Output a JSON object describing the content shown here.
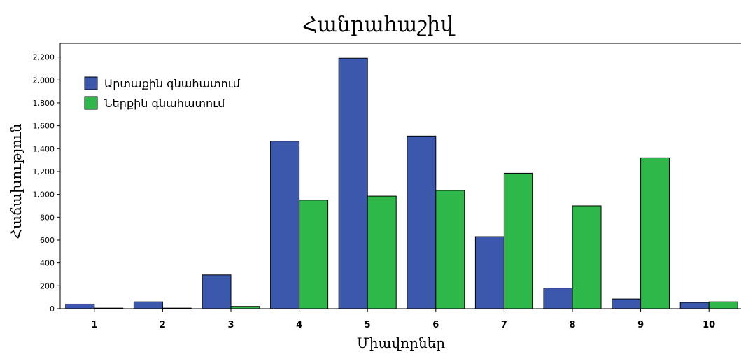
{
  "chart_data": {
    "type": "bar",
    "title": "Հանրահաշիվ",
    "xlabel": "Միավորներ",
    "ylabel": "Հաճախություն",
    "categories": [
      "1",
      "2",
      "3",
      "4",
      "5",
      "6",
      "7",
      "8",
      "9",
      "10"
    ],
    "series": [
      {
        "name": "Արտաքին գնահատում",
        "color": "#3c58ad",
        "values": [
          40,
          60,
          295,
          1465,
          2190,
          1510,
          630,
          180,
          85,
          55
        ]
      },
      {
        "name": "Ներքին գնահատում",
        "color": "#2fb84a",
        "values": [
          5,
          5,
          20,
          950,
          985,
          1035,
          1185,
          900,
          1320,
          60
        ]
      }
    ],
    "yticks": [
      "0",
      "200",
      "400",
      "600",
      "800",
      "1,000",
      "1,200",
      "1,400",
      "1,600",
      "1,800",
      "2,000",
      "2,200"
    ],
    "ylim": [
      0,
      2320
    ],
    "grid": false,
    "legend_position": "top-left"
  }
}
